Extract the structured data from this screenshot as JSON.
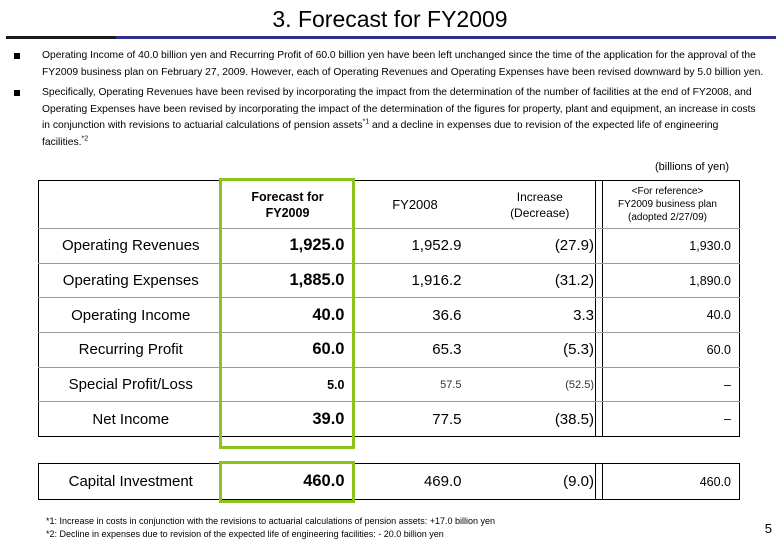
{
  "title": "3. Forecast for FY2009",
  "bullets": [
    "Operating Income of 40.0 billion yen and Recurring Profit of 60.0 billion yen have been left unchanged since the time of the application for the approval of the FY2009 business plan on February 27, 2009.  However, each of Operating Revenues and Operating Expenses have been revised downward by 5.0 billion yen.",
    {
      "text": "Specifically, Operating Revenues have been revised by incorporating the impact from the determination of the number of facilities at the end of FY2008, and Operating Expenses have been revised by incorporating the impact of the determination of the figures for property, plant and equipment, an increase in costs in conjunction with revisions to actuarial calculations of pension assets",
      "sup1": "*1",
      "text2": " and a decline in expenses due to revision of the expected life of engineering facilities.",
      "sup2": "*2"
    }
  ],
  "unit_note": "(billions of yen)",
  "table": {
    "headers": {
      "forecast_line1": "Forecast for",
      "forecast_line2": "FY2009",
      "fy2008": "FY2008",
      "increase_line1": "Increase",
      "increase_line2": "(Decrease)",
      "reference_line1": "<For reference>",
      "reference_line2": "FY2009 business plan",
      "reference_line3": "(adopted 2/27/09)"
    },
    "rows": [
      {
        "label": "Operating Revenues",
        "forecast": "1,925.0",
        "fy2008": "1,952.9",
        "increase": "(27.9)",
        "reference": "1,930.0"
      },
      {
        "label": "Operating Expenses",
        "forecast": "1,885.0",
        "fy2008": "1,916.2",
        "increase": "(31.2)",
        "reference": "1,890.0"
      },
      {
        "label": "Operating Income",
        "forecast": "40.0",
        "fy2008": "36.6",
        "increase": "3.3",
        "reference": "40.0"
      },
      {
        "label": "Recurring Profit",
        "forecast": "60.0",
        "fy2008": "65.3",
        "increase": "(5.3)",
        "reference": "60.0"
      },
      {
        "label": "Special Profit/Loss",
        "forecast": "5.0",
        "fy2008": "57.5",
        "increase": "(52.5)",
        "reference": "–"
      },
      {
        "label": "Net Income",
        "forecast": "39.0",
        "fy2008": "77.5",
        "increase": "(38.5)",
        "reference": "–"
      }
    ],
    "capital": {
      "label": "Capital Investment",
      "forecast": "460.0",
      "fy2008": "469.0",
      "increase": "(9.0)",
      "reference": "460.0"
    }
  },
  "footnotes": [
    "*1: Increase in costs in conjunction with the revisions to actuarial calculations of pension assets: +17.0 billion yen",
    "*2: Decline in expenses due to revision of the expected life of engineering facilities:  - 20.0 billion yen"
  ],
  "page_number": "5",
  "colors": {
    "highlight": "#8dc21f",
    "title_rule": "#2f2f8f"
  }
}
